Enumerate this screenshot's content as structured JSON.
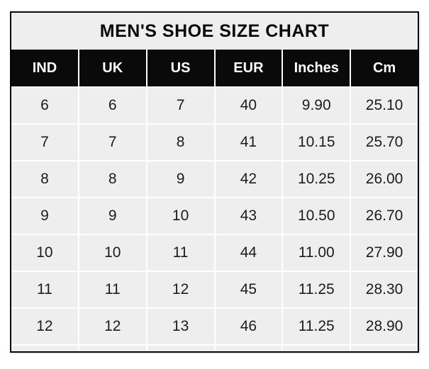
{
  "chart_data": {
    "type": "table",
    "title": "MEN'S SHOE SIZE CHART",
    "columns": [
      "IND",
      "UK",
      "US",
      "EUR",
      "Inches",
      "Cm"
    ],
    "rows": [
      [
        "6",
        "6",
        "7",
        "40",
        "9.90",
        "25.10"
      ],
      [
        "7",
        "7",
        "8",
        "41",
        "10.15",
        "25.70"
      ],
      [
        "8",
        "8",
        "9",
        "42",
        "10.25",
        "26.00"
      ],
      [
        "9",
        "9",
        "10",
        "43",
        "10.50",
        "26.70"
      ],
      [
        "10",
        "10",
        "11",
        "44",
        "11.00",
        "27.90"
      ],
      [
        "11",
        "11",
        "12",
        "45",
        "11.25",
        "28.30"
      ],
      [
        "12",
        "12",
        "13",
        "46",
        "11.25",
        "28.90"
      ]
    ]
  },
  "colors": {
    "page_bg": "#ffffff",
    "header_bg": "#0a0a0a",
    "header_text": "#ffffff",
    "cell_bg": "#eeeeee",
    "separator": "#ffffff",
    "body_text": "#1c1c1c",
    "border": "#060606"
  }
}
